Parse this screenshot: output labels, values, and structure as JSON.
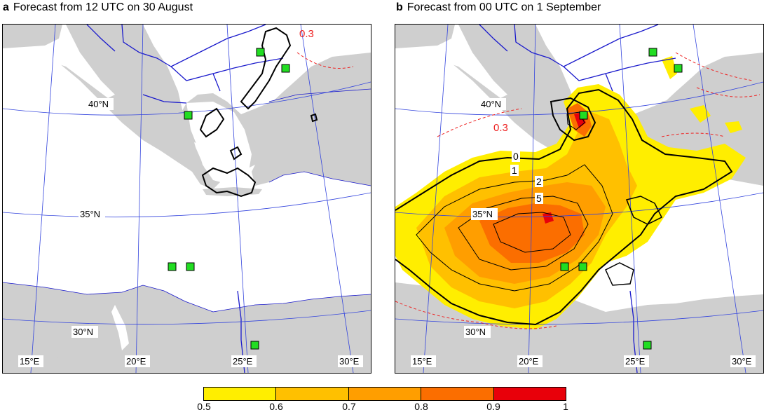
{
  "panels": [
    {
      "letter": "a",
      "title": "Forecast from 12 UTC on 30 August"
    },
    {
      "letter": "b",
      "title": "Forecast from 00 UTC on 1 September"
    }
  ],
  "lat_labels": [
    "40°N",
    "35°N",
    "30°N"
  ],
  "lon_labels": [
    "15°E",
    "20°E",
    "25°E",
    "30°E"
  ],
  "contour_labels": {
    "c03": "0.3",
    "c0": "0",
    "c1": "1",
    "c2": "2",
    "c5": "5"
  },
  "colorbar": {
    "ticks": [
      "0.5",
      "0.6",
      "0.7",
      "0.8",
      "0.9",
      "1"
    ],
    "colors": [
      "#ffee00",
      "#ffc000",
      "#ff9e00",
      "#fb6e00",
      "#e8000a"
    ]
  },
  "colors": {
    "land": "#cfcfcf",
    "sea": "#ffffff",
    "grid": "#3344dd",
    "border": "#1a1acc",
    "station": "#22dd22",
    "dashed": "#ee2222"
  }
}
